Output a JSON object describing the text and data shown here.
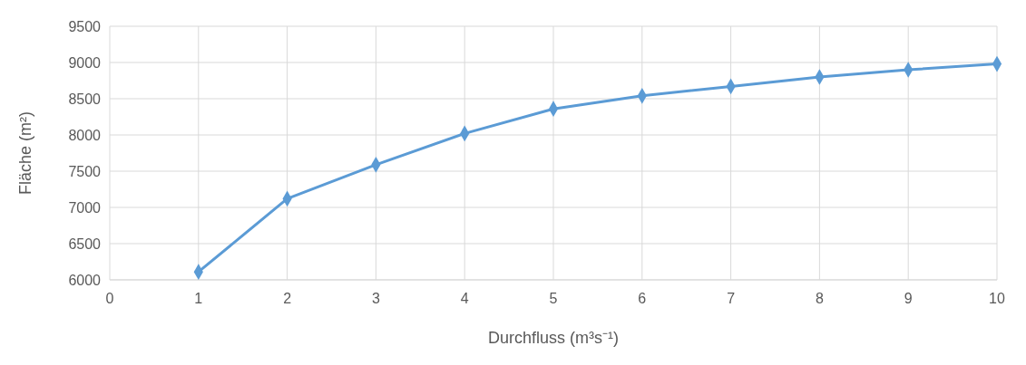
{
  "chart_data": {
    "type": "line",
    "xlabel": "Durchfluss (m³s⁻¹)",
    "ylabel": "Fläche (m²)",
    "x": [
      1,
      2,
      3,
      4,
      5,
      6,
      7,
      8,
      9,
      10
    ],
    "series": [
      {
        "color": "#5b9bd5",
        "values": [
          6110,
          7120,
          7590,
          8020,
          8360,
          8540,
          8670,
          8800,
          8900,
          8980
        ]
      }
    ],
    "xlim": [
      0,
      10
    ],
    "xticks": [
      0,
      1,
      2,
      3,
      4,
      5,
      6,
      7,
      8,
      9,
      10
    ],
    "ylim": [
      6000,
      9500
    ],
    "yticks": [
      6000,
      6500,
      7000,
      7500,
      8000,
      8500,
      9000,
      9500
    ],
    "grid": true,
    "marker": "diamond",
    "line_style": "solid"
  }
}
